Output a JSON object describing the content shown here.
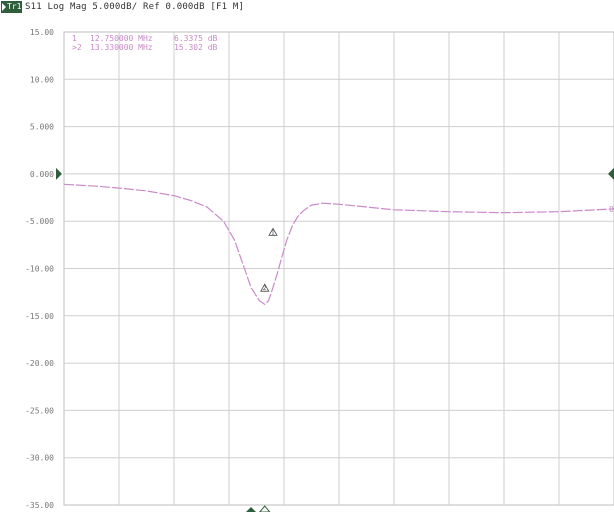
{
  "header": {
    "trace_label": "Tr1",
    "text": "S11 Log Mag 5.000dB/ Ref 0.000dB [F1 M]"
  },
  "markers": [
    {
      "id": "1",
      "freq": "12.750000 MHz",
      "value": "6.3375 dB"
    },
    {
      "id": ">2",
      "freq": "13.330000 MHz",
      "value": "15.302 dB"
    }
  ],
  "chart_data": {
    "type": "line",
    "title": "S11 Log Mag 5.000dB/ Ref 0.000dB [F1 M]",
    "xlabel": "",
    "ylabel": "",
    "ylim": [
      -35,
      15
    ],
    "xlim": [
      0,
      10
    ],
    "y_ticks": [
      "15.00",
      "10.00",
      "5.000",
      "0.000",
      "-5.000",
      "-10.00",
      "-15.00",
      "-20.00",
      "-25.00",
      "-30.00",
      "-35.00"
    ],
    "x_divisions": 10,
    "grid": true,
    "reference_level": 0,
    "trace_color": "#c98ac9",
    "accent_color": "#2f5f3a",
    "series": [
      {
        "x": [
          0.0,
          0.6,
          1.0,
          1.5,
          2.0,
          2.3,
          2.6,
          2.9,
          3.1,
          3.25,
          3.4,
          3.55,
          3.65,
          3.72,
          3.8,
          3.88,
          3.95,
          4.05,
          4.15,
          4.25,
          4.35,
          4.5,
          4.7,
          5.0,
          5.5,
          6.0,
          7.0,
          8.0,
          9.0,
          10.0
        ],
        "y": [
          -1.1,
          -1.3,
          -1.5,
          -1.8,
          -2.3,
          -2.8,
          -3.5,
          -5.0,
          -7.0,
          -9.5,
          -12.0,
          -13.4,
          -13.8,
          -13.4,
          -12.0,
          -10.5,
          -9.0,
          -7.0,
          -5.5,
          -4.5,
          -3.9,
          -3.3,
          -3.1,
          -3.2,
          -3.5,
          -3.8,
          -4.0,
          -4.1,
          -4.0,
          -3.7
        ]
      }
    ],
    "marker_points": [
      {
        "label": "1",
        "x": 3.8,
        "y": -6.5
      },
      {
        "label": "2",
        "x": 3.65,
        "y": -12.4
      }
    ],
    "stimulus_markers": [
      {
        "symbol": "filled-triangle",
        "x": 3.4
      },
      {
        "symbol": "hollow-triangle",
        "x": 3.65
      }
    ]
  }
}
